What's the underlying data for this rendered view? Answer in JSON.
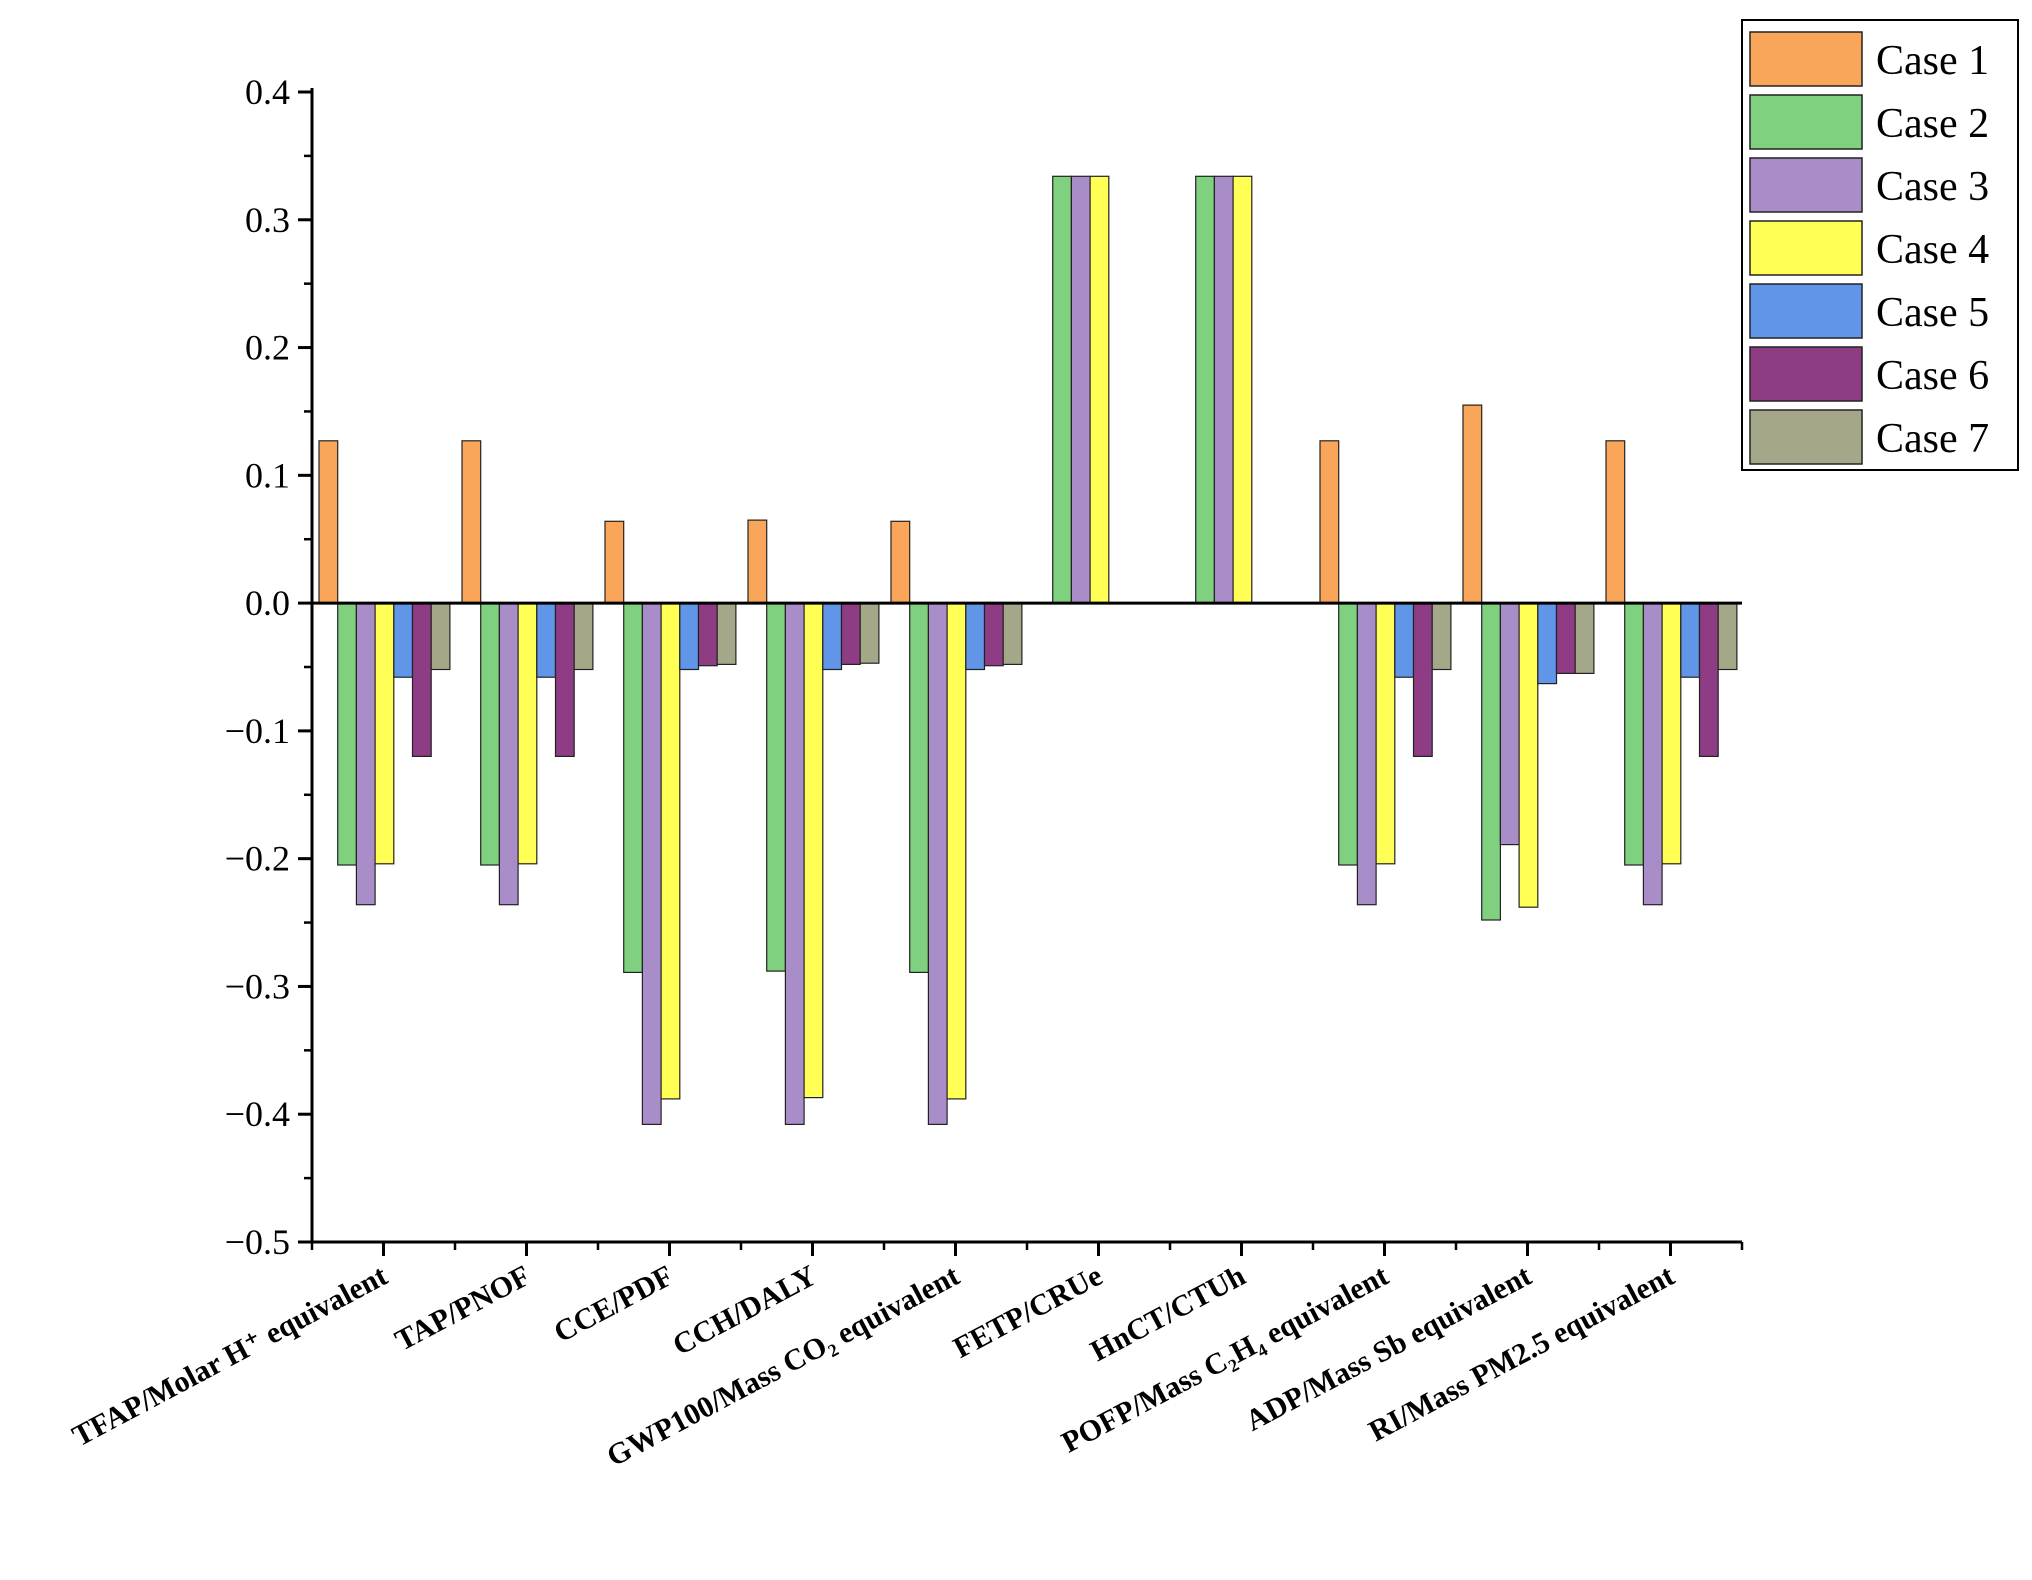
{
  "chart_data": {
    "type": "bar",
    "title": "",
    "xlabel": "",
    "ylabel": "",
    "ylim": [
      -0.5,
      0.4
    ],
    "yticks": [
      -0.5,
      -0.4,
      -0.3,
      -0.2,
      -0.1,
      0.0,
      0.1,
      0.2,
      0.3,
      0.4
    ],
    "ytick_labels": [
      "−0.5",
      "−0.4",
      "−0.3",
      "−0.2",
      "−0.1",
      "0.0",
      "0.1",
      "0.2",
      "0.3",
      "0.4"
    ],
    "grid": false,
    "legend_position": "top-right",
    "categories": [
      "TFAP/Molar H⁺ equivalent",
      "TAP/PNOF",
      "CCE/PDF",
      "CCH/DALY",
      "GWP100/Mass CO₂ equivalent",
      "FETP/CRUe",
      "HnCT/CTUh",
      "POFP/Mass C₂H₄ equivalent",
      "ADP/Mass Sb equivalent",
      "RI/Mass PM2.5 equivalent"
    ],
    "series": [
      {
        "name": "Case 1",
        "color": "#F9A65A",
        "values": [
          0.127,
          0.127,
          0.064,
          0.065,
          0.064,
          0.0,
          0.0,
          0.127,
          0.155,
          0.127
        ]
      },
      {
        "name": "Case 2",
        "color": "#7FD17F",
        "values": [
          -0.205,
          -0.205,
          -0.289,
          -0.288,
          -0.289,
          0.334,
          0.334,
          -0.205,
          -0.248,
          -0.205
        ]
      },
      {
        "name": "Case 3",
        "color": "#A98DC9",
        "values": [
          -0.236,
          -0.236,
          -0.408,
          -0.408,
          -0.408,
          0.334,
          0.334,
          -0.236,
          -0.189,
          -0.236
        ]
      },
      {
        "name": "Case 4",
        "color": "#FFFF55",
        "values": [
          -0.204,
          -0.204,
          -0.388,
          -0.387,
          -0.388,
          0.334,
          0.334,
          -0.204,
          -0.238,
          -0.204
        ]
      },
      {
        "name": "Case 5",
        "color": "#6095E8",
        "values": [
          -0.058,
          -0.058,
          -0.052,
          -0.052,
          -0.052,
          0.0,
          0.0,
          -0.058,
          -0.063,
          -0.058
        ]
      },
      {
        "name": "Case 6",
        "color": "#8E3D85",
        "values": [
          -0.12,
          -0.12,
          -0.049,
          -0.048,
          -0.049,
          0.0,
          0.0,
          -0.12,
          -0.055,
          -0.12
        ]
      },
      {
        "name": "Case 7",
        "color": "#A4A889",
        "values": [
          -0.052,
          -0.052,
          -0.048,
          -0.047,
          -0.048,
          0.0,
          0.0,
          -0.052,
          -0.055,
          -0.052
        ]
      }
    ]
  }
}
